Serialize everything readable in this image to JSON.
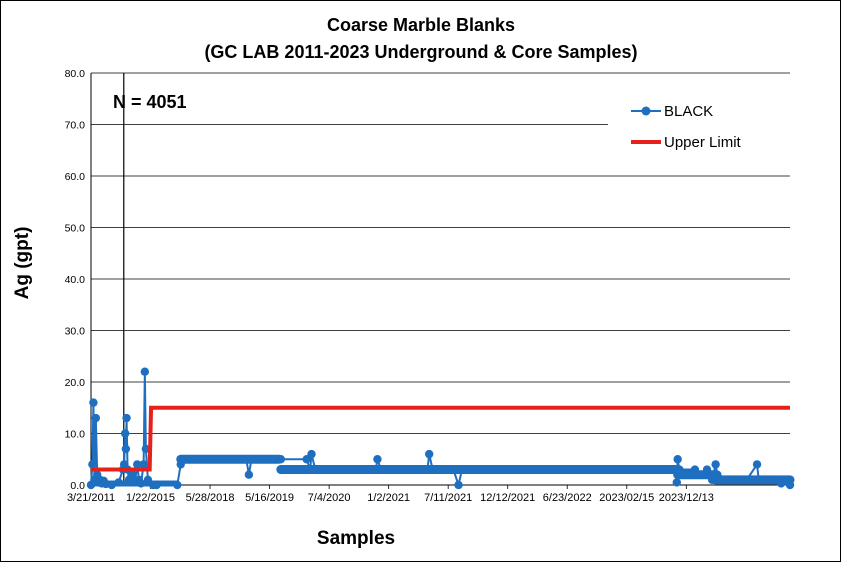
{
  "chart_data": {
    "type": "line",
    "title": "Coarse Marble Blanks",
    "subtitle": "(GC LAB 2011-2023 Underground & Core Samples)",
    "xlabel": "Samples",
    "ylabel": "Ag (gpt)",
    "annotation": "N = 4051",
    "ylim": [
      0,
      80
    ],
    "yticks": [
      "0.0",
      "10.0",
      "20.0",
      "30.0",
      "40.0",
      "50.0",
      "60.0",
      "70.0",
      "80.0"
    ],
    "xlim": [
      0,
      4051
    ],
    "xticks": [
      {
        "x": 0,
        "label": "3/21/2011"
      },
      {
        "x": 345,
        "label": "1/22/2015"
      },
      {
        "x": 690,
        "label": "5/28/2018"
      },
      {
        "x": 1035,
        "label": "5/16/2019"
      },
      {
        "x": 1380,
        "label": "7/4/2020"
      },
      {
        "x": 1725,
        "label": "1/2/2021"
      },
      {
        "x": 2070,
        "label": "7/11/2021"
      },
      {
        "x": 2415,
        "label": "12/12/2021"
      },
      {
        "x": 2760,
        "label": "6/23/2022"
      },
      {
        "x": 3105,
        "label": "2023/02/15"
      },
      {
        "x": 3450,
        "label": "2023/12/13"
      }
    ],
    "grid": true,
    "legend_position": "top-right",
    "series": [
      {
        "name": "BLACK",
        "color": "#1f6fc0",
        "style": "line-with-markers",
        "points": [
          [
            0,
            0
          ],
          [
            8,
            4
          ],
          [
            14,
            16
          ],
          [
            20,
            1
          ],
          [
            28,
            13
          ],
          [
            36,
            2
          ],
          [
            44,
            0.5
          ],
          [
            52,
            1
          ],
          [
            62,
            0.3
          ],
          [
            74,
            0.8
          ],
          [
            86,
            0.2
          ],
          [
            120,
            0
          ],
          [
            160,
            0.5
          ],
          [
            185,
            3
          ],
          [
            192,
            4
          ],
          [
            198,
            10
          ],
          [
            202,
            7
          ],
          [
            206,
            13
          ],
          [
            212,
            3
          ],
          [
            220,
            1
          ],
          [
            240,
            2
          ],
          [
            255,
            0.5
          ],
          [
            268,
            4
          ],
          [
            278,
            1
          ],
          [
            290,
            0.3
          ],
          [
            305,
            4
          ],
          [
            312,
            22
          ],
          [
            318,
            7
          ],
          [
            330,
            1
          ],
          [
            360,
            0
          ],
          [
            380,
            0
          ],
          [
            500,
            0
          ],
          [
            520,
            4
          ],
          [
            540,
            5
          ],
          [
            560,
            5
          ],
          [
            700,
            5
          ],
          [
            900,
            5
          ],
          [
            915,
            2
          ],
          [
            930,
            5
          ],
          [
            1100,
            5
          ],
          [
            1250,
            5
          ],
          [
            1270,
            3
          ],
          [
            1278,
            6
          ],
          [
            1300,
            3
          ],
          [
            1500,
            3
          ],
          [
            1650,
            3
          ],
          [
            1660,
            5
          ],
          [
            1680,
            3
          ],
          [
            1900,
            3
          ],
          [
            1950,
            3
          ],
          [
            1960,
            6
          ],
          [
            1980,
            3
          ],
          [
            2100,
            3
          ],
          [
            2130,
            0
          ],
          [
            2150,
            3
          ],
          [
            2300,
            3
          ],
          [
            2600,
            3
          ],
          [
            2900,
            3
          ],
          [
            3390,
            3
          ],
          [
            3395,
            0.5
          ],
          [
            3400,
            5
          ],
          [
            3410,
            3
          ],
          [
            3500,
            3
          ],
          [
            3560,
            2
          ],
          [
            3570,
            3
          ],
          [
            3600,
            1
          ],
          [
            3620,
            4
          ],
          [
            3630,
            2
          ],
          [
            3700,
            1
          ],
          [
            3800,
            1
          ],
          [
            3860,
            4
          ],
          [
            3870,
            1
          ],
          [
            3950,
            1
          ],
          [
            4000,
            0.3
          ],
          [
            4051,
            0
          ]
        ]
      },
      {
        "name": "Upper Limit",
        "color": "#e8201c",
        "style": "line",
        "points": [
          [
            0,
            3
          ],
          [
            340,
            3
          ],
          [
            348,
            15
          ],
          [
            4051,
            15
          ]
        ]
      }
    ]
  }
}
